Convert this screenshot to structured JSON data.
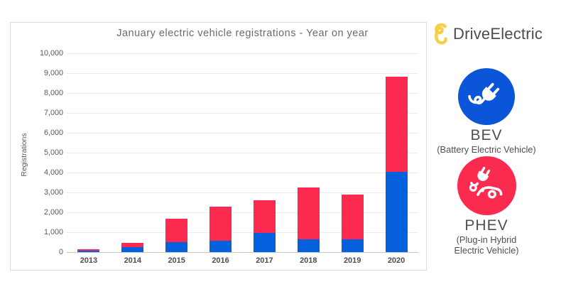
{
  "logo": {
    "name": "DriveElectric"
  },
  "chart_data": {
    "type": "bar",
    "stacked": true,
    "title": "January electric vehicle registrations - Year on year",
    "ylabel": "Registrations",
    "xlabel": "",
    "categories": [
      "2013",
      "2014",
      "2015",
      "2016",
      "2017",
      "2018",
      "2019",
      "2020"
    ],
    "series": [
      {
        "name": "BEV",
        "color": "#0560DD",
        "values": [
          80,
          265,
          505,
          575,
          970,
          635,
          630,
          4050
        ]
      },
      {
        "name": "PHEV",
        "color": "#FC2A4F",
        "values": [
          75,
          185,
          1180,
          1700,
          1625,
          2620,
          2255,
          4790
        ]
      }
    ],
    "totals": [
      155,
      450,
      1685,
      2275,
      2595,
      3255,
      2885,
      8840
    ],
    "ylim": [
      0,
      10000
    ],
    "ytick_step": 1000,
    "grid": true,
    "legend_position": "right panel"
  },
  "legend": {
    "bev": {
      "label": "BEV",
      "sublabel": "(Battery Electric Vehicle)",
      "color": "#0B55D9",
      "icon": "plug-icon"
    },
    "phev": {
      "label": "PHEV",
      "sublabel": "(Plug-in Hybrid Electric Vehicle)",
      "color": "#FB2A4F",
      "icon": "plug-car-icon"
    }
  },
  "colors": {
    "panel_border": "#dcdcdc",
    "gridline": "#ececec",
    "axis_line": "#c8c8c8",
    "text_gray": "#595959",
    "logo_yellow": "#F6CE45"
  }
}
